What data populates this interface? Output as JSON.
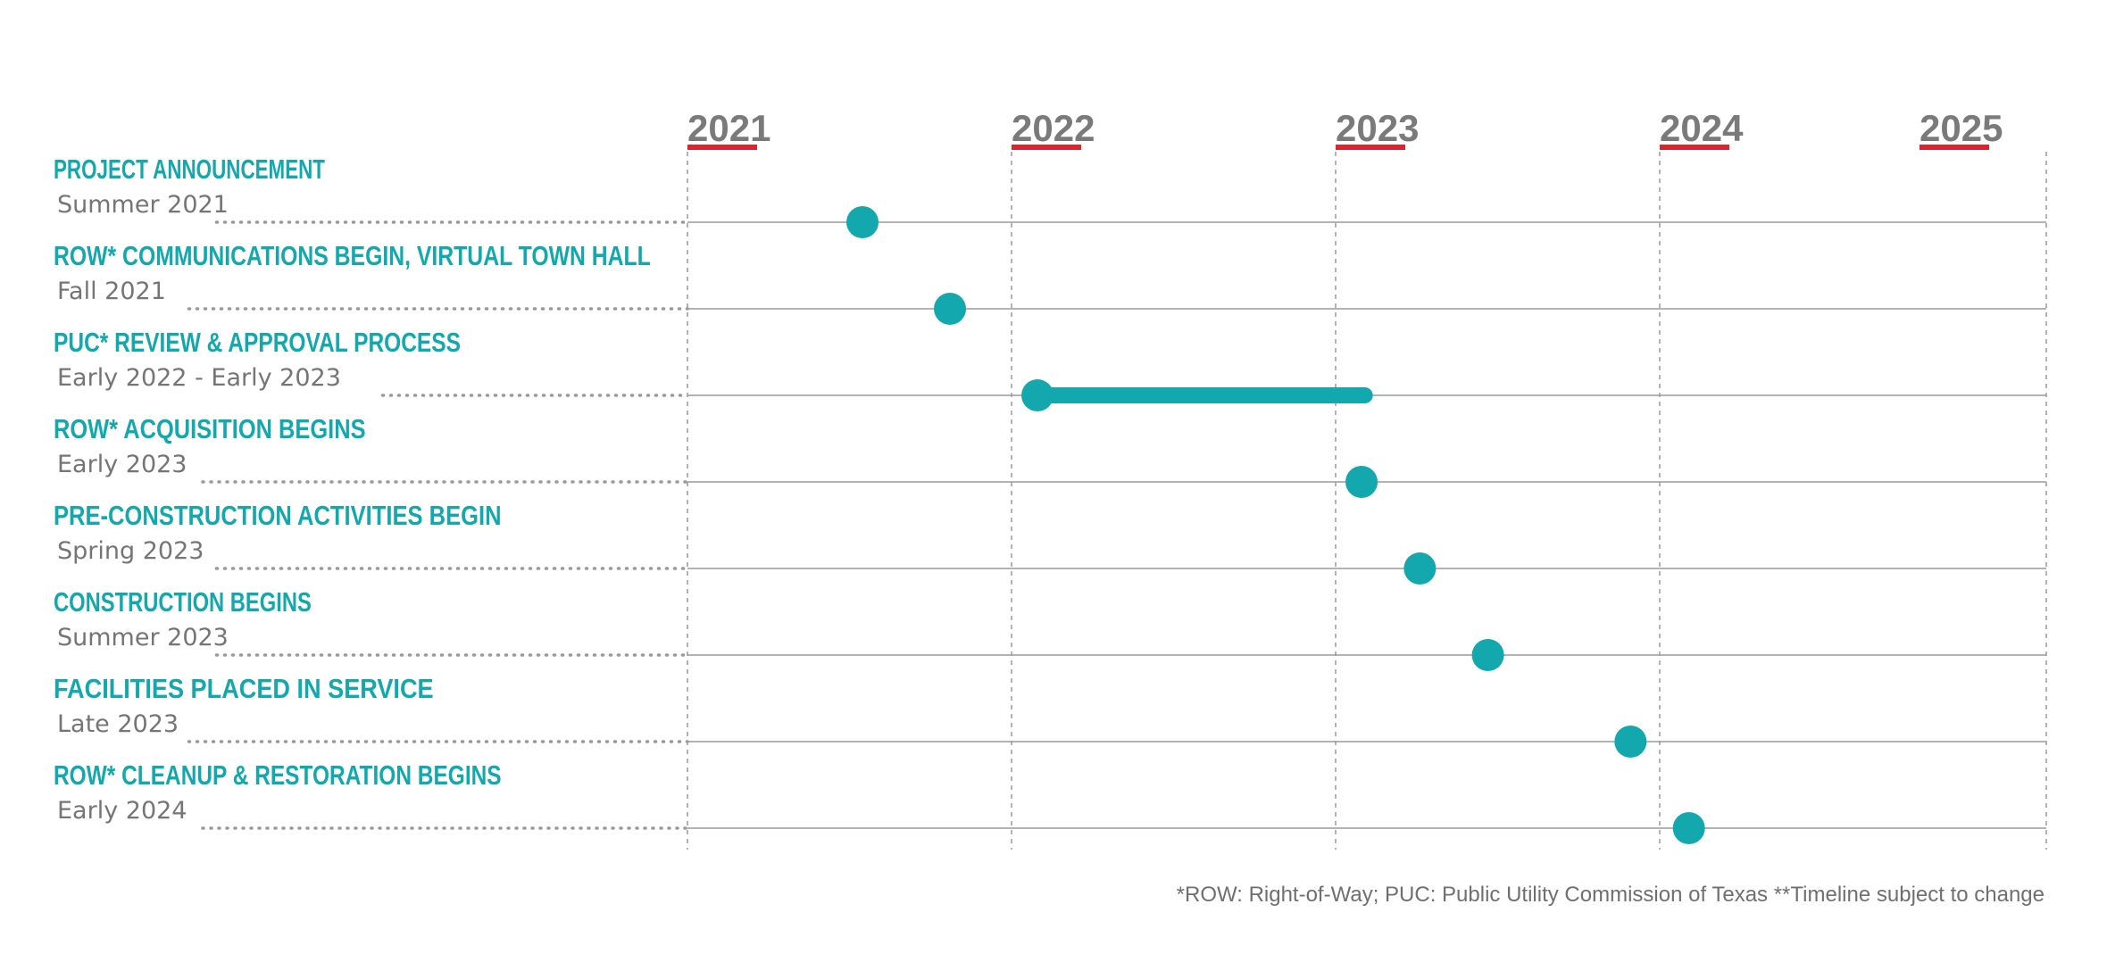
{
  "colors": {
    "accent": "#13a8ad",
    "year_underline": "#d7272f",
    "year_text": "#7a7a7a",
    "grid": "#9a9a9a",
    "date_text": "#757575"
  },
  "footnote": "*ROW: Right-of-Way; PUC: Public Utility Commission of Texas **Timeline subject to change",
  "chart_data": {
    "type": "timeline",
    "x_axis": {
      "ticks": [
        "2021",
        "2022",
        "2023",
        "2024",
        "2025"
      ],
      "range": [
        2021.0,
        2025.25
      ]
    },
    "grid": "vertical dashed at each year; horizontal line per milestone",
    "milestones": [
      {
        "title": "PROJECT ANNOUNCEMENT",
        "date_label": "Summer 2021",
        "start": 2021.54
      },
      {
        "title": "ROW* COMMUNICATIONS BEGIN, VIRTUAL TOWN HALL",
        "date_label": "Fall 2021",
        "start": 2021.81
      },
      {
        "title": "PUC* REVIEW & APPROVAL PROCESS",
        "date_label": "Early 2022 - Early 2023",
        "start": 2022.08,
        "end": 2023.09
      },
      {
        "title": "ROW* ACQUISITION BEGINS",
        "date_label": "Early 2023",
        "start": 2023.08
      },
      {
        "title": "PRE-CONSTRUCTION ACTIVITIES BEGIN",
        "date_label": "Spring 2023",
        "start": 2023.26
      },
      {
        "title": "CONSTRUCTION BEGINS",
        "date_label": "Summer 2023",
        "start": 2023.47
      },
      {
        "title": "FACILITIES PLACED IN SERVICE",
        "date_label": "Late 2023",
        "start": 2023.91
      },
      {
        "title": "ROW* CLEANUP & RESTORATION BEGINS",
        "date_label": "Early 2024",
        "start": 2024.09
      }
    ]
  }
}
